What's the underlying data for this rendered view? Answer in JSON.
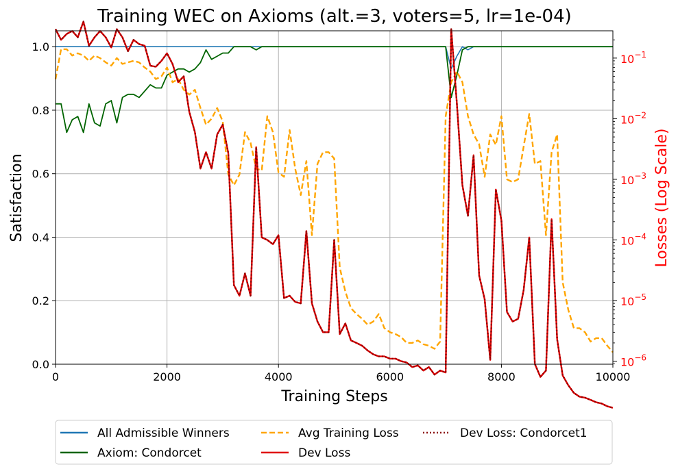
{
  "chart_data": {
    "type": "line",
    "title": "Training WEC on Axioms (alt.=3, voters=5, lr=1e-04)",
    "xlabel": "Training Steps",
    "ylabel_left": "Satisfaction",
    "ylabel_right": "Losses (Log Scale)",
    "xlim": [
      0,
      10000
    ],
    "ylim_left": [
      0,
      1.05
    ],
    "ylim_right_log10": [
      -6.05,
      -0.55
    ],
    "x_ticks": [
      0,
      2000,
      4000,
      6000,
      8000,
      10000
    ],
    "y_left_ticks": [
      0.0,
      0.2,
      0.4,
      0.6,
      0.8,
      1.0
    ],
    "y_right_ticks": [
      {
        "exp": -6,
        "label": "10^-6"
      },
      {
        "exp": -5,
        "label": "10^-5"
      },
      {
        "exp": -4,
        "label": "10^-4"
      },
      {
        "exp": -3,
        "label": "10^-3"
      },
      {
        "exp": -2,
        "label": "10^-2"
      },
      {
        "exp": -1,
        "label": "10^-1"
      }
    ],
    "grid": true,
    "legend_placement": "below",
    "colors": {
      "admissible": "#1f77b4",
      "condorcet": "#006400",
      "avg_loss": "#ffa500",
      "dev_loss": "#e00000",
      "dev_condorcet1": "#8b0000",
      "right_axis": "#ff0000"
    },
    "series": [
      {
        "name": "All Admissible Winners",
        "axis": "left",
        "style": "solid",
        "x": [
          0,
          7000,
          7100,
          7200,
          7300,
          7400,
          7500,
          10000
        ],
        "y": [
          1.0,
          1.0,
          0.93,
          0.97,
          1.0,
          0.99,
          1.0,
          1.0
        ]
      },
      {
        "name": "Axiom: Condorcet",
        "axis": "left",
        "style": "solid",
        "x": [
          0,
          100,
          200,
          300,
          400,
          500,
          600,
          700,
          800,
          900,
          1000,
          1100,
          1200,
          1300,
          1400,
          1500,
          1600,
          1700,
          1800,
          1900,
          2000,
          2100,
          2200,
          2300,
          2400,
          2500,
          2600,
          2700,
          2800,
          2900,
          3000,
          3100,
          3200,
          3300,
          3400,
          3500,
          3600,
          3700,
          3800,
          7000,
          7100,
          7200,
          7300,
          7400,
          7500,
          10000
        ],
        "y": [
          0.82,
          0.82,
          0.73,
          0.77,
          0.78,
          0.73,
          0.82,
          0.76,
          0.75,
          0.82,
          0.83,
          0.76,
          0.84,
          0.85,
          0.85,
          0.84,
          0.86,
          0.88,
          0.87,
          0.87,
          0.91,
          0.92,
          0.93,
          0.93,
          0.92,
          0.93,
          0.95,
          0.99,
          0.96,
          0.97,
          0.98,
          0.98,
          1.0,
          1.0,
          1.0,
          1.0,
          0.99,
          1.0,
          1.0,
          1.0,
          0.84,
          0.91,
          0.99,
          1.0,
          1.0,
          1.0
        ]
      },
      {
        "name": "Avg Training Loss",
        "axis": "right",
        "style": "dashed",
        "x": [
          0,
          100,
          200,
          300,
          400,
          500,
          600,
          700,
          800,
          900,
          1000,
          1100,
          1200,
          1300,
          1400,
          1500,
          1600,
          1700,
          1800,
          1900,
          2000,
          2100,
          2200,
          2300,
          2400,
          2500,
          2600,
          2700,
          2800,
          2900,
          3000,
          3100,
          3200,
          3300,
          3400,
          3500,
          3600,
          3700,
          3800,
          3900,
          4000,
          4100,
          4200,
          4300,
          4400,
          4500,
          4600,
          4700,
          4800,
          4900,
          5000,
          5100,
          5200,
          5300,
          5400,
          5500,
          5600,
          5700,
          5800,
          5900,
          6000,
          6100,
          6200,
          6300,
          6400,
          6500,
          6600,
          6700,
          6800,
          6900,
          7000,
          7100,
          7200,
          7300,
          7400,
          7500,
          7600,
          7700,
          7800,
          7900,
          8000,
          8100,
          8200,
          8300,
          8400,
          8500,
          8600,
          8700,
          8800,
          8900,
          9000,
          9100,
          9200,
          9300,
          9400,
          9500,
          9600,
          9700,
          9800,
          9900,
          10000
        ],
        "y": [
          0.045,
          0.14,
          0.14,
          0.11,
          0.12,
          0.11,
          0.09,
          0.11,
          0.1,
          0.085,
          0.075,
          0.1,
          0.08,
          0.085,
          0.09,
          0.085,
          0.07,
          0.06,
          0.045,
          0.05,
          0.07,
          0.04,
          0.045,
          0.03,
          0.025,
          0.03,
          0.015,
          0.008,
          0.01,
          0.015,
          0.009,
          0.0012,
          0.0008,
          0.0012,
          0.006,
          0.004,
          0.0015,
          0.0014,
          0.011,
          0.006,
          0.0013,
          0.0011,
          0.0065,
          0.0015,
          0.00055,
          0.002,
          0.00012,
          0.0018,
          0.0028,
          0.0028,
          0.0022,
          3.5e-05,
          1.4e-05,
          7.5e-06,
          6e-06,
          5e-06,
          4e-06,
          4.5e-06,
          6e-06,
          3.5e-06,
          3e-06,
          2.8e-06,
          2.5e-06,
          2e-06,
          2e-06,
          2.2e-06,
          1.9e-06,
          1.8e-06,
          1.6e-06,
          2.1e-06,
          0.011,
          0.04,
          0.06,
          0.04,
          0.011,
          0.0055,
          0.0038,
          0.0011,
          0.0055,
          0.0037,
          0.011,
          0.001,
          0.0009,
          0.001,
          0.0035,
          0.012,
          0.0018,
          0.002,
          0.00012,
          0.0028,
          0.0055,
          2e-05,
          7e-06,
          3.5e-06,
          3.5e-06,
          3e-06,
          2.1e-06,
          2.4e-06,
          2.4e-06,
          1.8e-06,
          1.4e-06
        ]
      },
      {
        "name": "Dev Loss",
        "axis": "right",
        "style": "solid",
        "x": [
          0,
          100,
          200,
          300,
          400,
          500,
          600,
          700,
          800,
          900,
          1000,
          1100,
          1200,
          1300,
          1400,
          1500,
          1600,
          1700,
          1800,
          1900,
          2000,
          2100,
          2200,
          2300,
          2400,
          2500,
          2600,
          2700,
          2800,
          2900,
          3000,
          3100,
          3200,
          3300,
          3400,
          3500,
          3600,
          3700,
          3800,
          3900,
          4000,
          4100,
          4200,
          4300,
          4400,
          4500,
          4600,
          4700,
          4800,
          4900,
          5000,
          5100,
          5200,
          5300,
          5400,
          5500,
          5600,
          5700,
          5800,
          5900,
          6000,
          6100,
          6200,
          6300,
          6400,
          6500,
          6600,
          6700,
          6800,
          6900,
          7000,
          7100,
          7200,
          7300,
          7400,
          7500,
          7600,
          7700,
          7800,
          7900,
          8000,
          8100,
          8200,
          8300,
          8400,
          8500,
          8600,
          8700,
          8800,
          8900,
          9000,
          9100,
          9200,
          9300,
          9400,
          9500,
          9600,
          9700,
          9800,
          9900,
          10000
        ],
        "y": [
          0.3,
          0.2,
          0.25,
          0.28,
          0.22,
          0.4,
          0.16,
          0.22,
          0.28,
          0.22,
          0.15,
          0.3,
          0.22,
          0.13,
          0.2,
          0.17,
          0.16,
          0.075,
          0.072,
          0.09,
          0.12,
          0.08,
          0.04,
          0.05,
          0.013,
          0.006,
          0.0015,
          0.0028,
          0.0015,
          0.0055,
          0.008,
          0.0027,
          1.8e-05,
          1.2e-05,
          2.8e-05,
          1.2e-05,
          0.0034,
          0.00011,
          0.0001,
          8.5e-05,
          0.00012,
          1.1e-05,
          1.2e-05,
          9.5e-06,
          9e-06,
          0.00014,
          9e-06,
          4.5e-06,
          3e-06,
          3e-06,
          0.0001,
          2.8e-06,
          4.2e-06,
          2.2e-06,
          2e-06,
          1.8e-06,
          1.5e-06,
          1.3e-06,
          1.2e-06,
          1.2e-06,
          1.1e-06,
          1.1e-06,
          1e-06,
          9.5e-07,
          8e-07,
          8.5e-07,
          7e-07,
          8e-07,
          6e-07,
          7e-07,
          6.5e-07,
          0.3,
          0.018,
          0.0008,
          0.00025,
          0.0025,
          2.6e-05,
          1.05e-05,
          1.05e-06,
          0.00068,
          0.00021,
          6.5e-06,
          4.5e-06,
          5e-06,
          1.5e-05,
          0.00011,
          9e-07,
          5.5e-07,
          7e-07,
          0.00022,
          2.3e-06,
          5.8e-07,
          4e-07,
          3e-07,
          2.6e-07,
          2.5e-07,
          2.3e-07,
          2.1e-07,
          2e-07,
          1.8e-07,
          1.7e-07
        ]
      },
      {
        "name": "Dev Loss: Condorcet1",
        "axis": "right",
        "style": "dotted",
        "same_values_as": "Dev Loss"
      }
    ]
  },
  "legend": {
    "items": [
      {
        "label": "All Admissible Winners",
        "color": "#1f77b4",
        "style": "solid"
      },
      {
        "label": "Axiom: Condorcet",
        "color": "#006400",
        "style": "solid"
      },
      {
        "label": "Avg Training Loss",
        "color": "#ffa500",
        "style": "dashed"
      },
      {
        "label": "Dev Loss",
        "color": "#e00000",
        "style": "solid"
      },
      {
        "label": "Dev Loss: Condorcet1",
        "color": "#8b0000",
        "style": "dotted"
      }
    ]
  }
}
